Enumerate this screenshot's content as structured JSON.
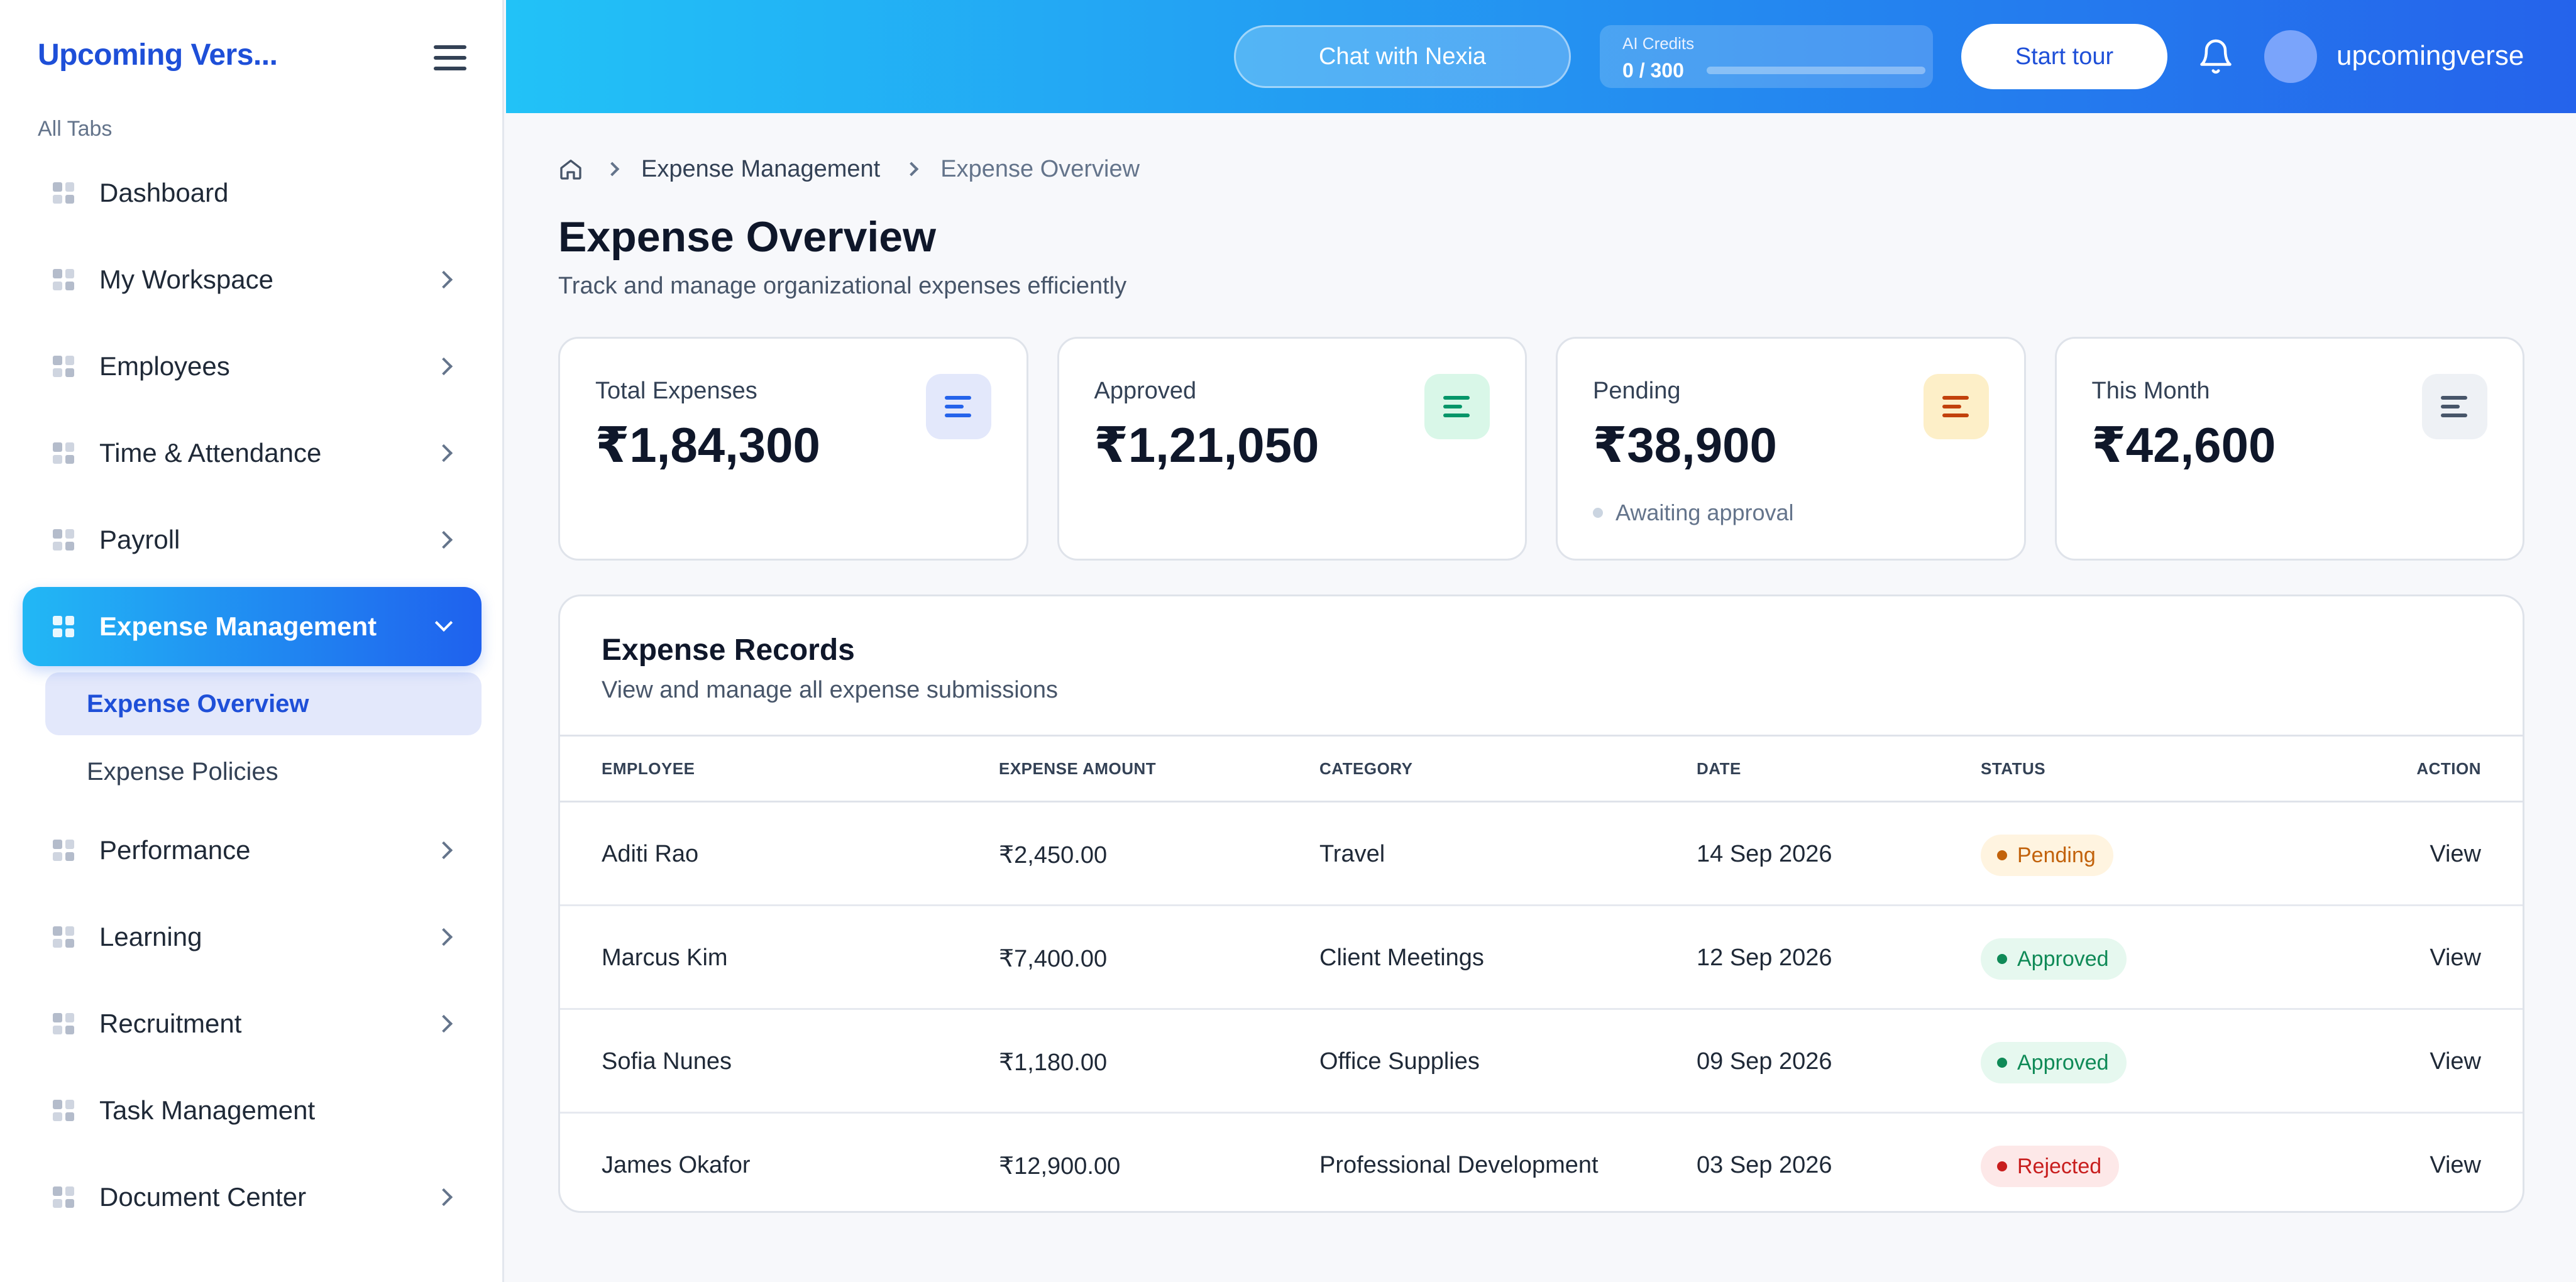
{
  "sidebar": {
    "brand": "Upcoming Vers...",
    "section_label": "All Tabs",
    "items": [
      {
        "label": "Dashboard",
        "has_children": false
      },
      {
        "label": "My Workspace",
        "has_children": true
      },
      {
        "label": "Employees",
        "has_children": true
      },
      {
        "label": "Time & Attendance",
        "has_children": true
      },
      {
        "label": "Payroll",
        "has_children": true
      },
      {
        "label": "Expense Management",
        "has_children": true,
        "active": true,
        "children": [
          {
            "label": "Expense Overview",
            "active": true
          },
          {
            "label": "Expense Policies",
            "active": false
          }
        ]
      },
      {
        "label": "Performance",
        "has_children": true
      },
      {
        "label": "Learning",
        "has_children": true
      },
      {
        "label": "Recruitment",
        "has_children": true
      },
      {
        "label": "Task Management",
        "has_children": false
      },
      {
        "label": "Document Center",
        "has_children": true
      }
    ]
  },
  "header": {
    "chat_label": "Chat with Nexia",
    "credits": {
      "title": "AI Credits",
      "value": "0 / 300",
      "fraction_used": 0.0
    },
    "tour_label": "Start tour",
    "username": "upcomingverse",
    "icons": {
      "bell": "bell-icon",
      "avatar": "avatar"
    }
  },
  "breadcrumb": {
    "items": [
      "Expense Management",
      "Expense Overview"
    ]
  },
  "page": {
    "title": "Expense Overview",
    "subtitle": "Track and manage organizational expenses efficiently"
  },
  "stats": [
    {
      "label": "Total Expenses",
      "value": "₹1,84,300",
      "note": "",
      "icon_bg": "#e3e8fb",
      "icon_color": "#2563eb"
    },
    {
      "label": "Approved",
      "value": "₹1,21,050",
      "note": "",
      "icon_bg": "#d9f7e8",
      "icon_color": "#059669"
    },
    {
      "label": "Pending",
      "value": "₹38,900",
      "note": "Awaiting approval",
      "icon_bg": "#fdefc8",
      "icon_color": "#c2410c"
    },
    {
      "label": "This Month",
      "value": "₹42,600",
      "note": "",
      "icon_bg": "#eef1f5",
      "icon_color": "#475569"
    }
  ],
  "records": {
    "title": "Expense Records",
    "subtitle": "View and manage all expense submissions",
    "columns": [
      "EMPLOYEE",
      "EXPENSE AMOUNT",
      "CATEGORY",
      "DATE",
      "STATUS",
      "ACTION"
    ],
    "rows": [
      {
        "employee": "Aditi Rao",
        "amount": "₹2,450.00",
        "category": "Travel",
        "date": "14 Sep 2026",
        "status": "Pending",
        "action": "View"
      },
      {
        "employee": "Marcus Kim",
        "amount": "₹7,400.00",
        "category": "Client Meetings",
        "date": "12 Sep 2026",
        "status": "Approved",
        "action": "View"
      },
      {
        "employee": "Sofia Nunes",
        "amount": "₹1,180.00",
        "category": "Office Supplies",
        "date": "09 Sep 2026",
        "status": "Approved",
        "action": "View"
      },
      {
        "employee": "James Okafor",
        "amount": "₹12,900.00",
        "category": "Professional Development",
        "date": "03 Sep 2026",
        "status": "Rejected",
        "action": "View"
      }
    ],
    "status_colors": {
      "Pending": {
        "bg": "#fff4e0",
        "fg": "#c2620b",
        "dot": "#f59e0b"
      },
      "Approved": {
        "bg": "#e6f8ef",
        "fg": "#0f8a57",
        "dot": "#10b981"
      },
      "Rejected": {
        "bg": "#fde8e8",
        "fg": "#c81e1e",
        "dot": "#ef4444"
      }
    }
  }
}
